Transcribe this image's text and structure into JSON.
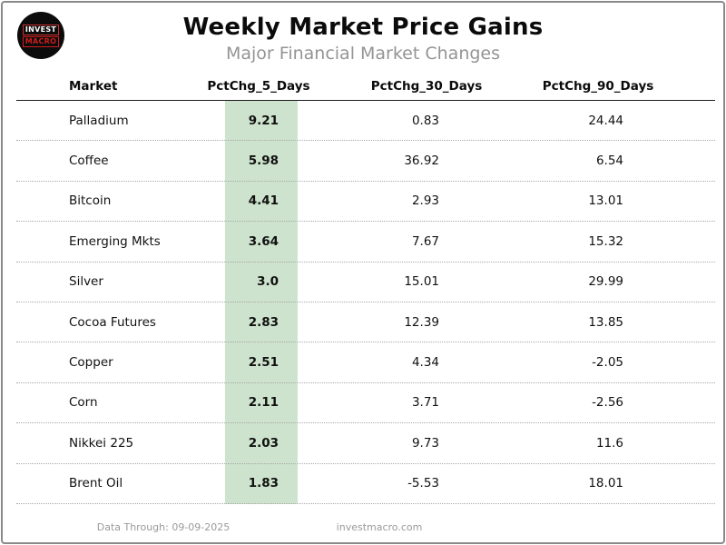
{
  "logo": {
    "line1": "INVEST",
    "line2": "MACRO"
  },
  "header": {
    "title": "Weekly Market Price Gains",
    "subtitle": "Major Financial Market Changes"
  },
  "table": {
    "columns": [
      "Market",
      "PctChg_5_Days",
      "PctChg_30_Days",
      "PctChg_90_Days"
    ],
    "rows": [
      {
        "market": "Palladium",
        "d5": "9.21",
        "d30": "0.83",
        "d90": "24.44"
      },
      {
        "market": "Coffee",
        "d5": "5.98",
        "d30": "36.92",
        "d90": "6.54"
      },
      {
        "market": "Bitcoin",
        "d5": "4.41",
        "d30": "2.93",
        "d90": "13.01"
      },
      {
        "market": "Emerging Mkts",
        "d5": "3.64",
        "d30": "7.67",
        "d90": "15.32"
      },
      {
        "market": "Silver",
        "d5": "3.0",
        "d30": "15.01",
        "d90": "29.99"
      },
      {
        "market": "Cocoa Futures",
        "d5": "2.83",
        "d30": "12.39",
        "d90": "13.85"
      },
      {
        "market": "Copper",
        "d5": "2.51",
        "d30": "4.34",
        "d90": "-2.05"
      },
      {
        "market": "Corn",
        "d5": "2.11",
        "d30": "3.71",
        "d90": "-2.56"
      },
      {
        "market": "Nikkei 225",
        "d5": "2.03",
        "d30": "9.73",
        "d90": "11.6"
      },
      {
        "market": "Brent Oil",
        "d5": "1.83",
        "d30": "-5.53",
        "d90": "18.01"
      }
    ]
  },
  "footer": {
    "data_through": "Data Through: 09-09-2025",
    "site": "investmacro.com"
  },
  "colors": {
    "highlight_green": "#cde3cd",
    "logo_red": "#cf1c1c",
    "subtitle_gray": "#949494"
  },
  "chart_data": {
    "type": "table",
    "title": "Weekly Market Price Gains",
    "subtitle": "Major Financial Market Changes",
    "columns": [
      "Market",
      "PctChg_5_Days",
      "PctChg_30_Days",
      "PctChg_90_Days"
    ],
    "rows": [
      [
        "Palladium",
        9.21,
        0.83,
        24.44
      ],
      [
        "Coffee",
        5.98,
        36.92,
        6.54
      ],
      [
        "Bitcoin",
        4.41,
        2.93,
        13.01
      ],
      [
        "Emerging Mkts",
        3.64,
        7.67,
        15.32
      ],
      [
        "Silver",
        3.0,
        15.01,
        29.99
      ],
      [
        "Cocoa Futures",
        2.83,
        12.39,
        13.85
      ],
      [
        "Copper",
        2.51,
        4.34,
        -2.05
      ],
      [
        "Corn",
        2.11,
        3.71,
        -2.56
      ],
      [
        "Nikkei 225",
        2.03,
        9.73,
        11.6
      ],
      [
        "Brent Oil",
        1.83,
        -5.53,
        18.01
      ]
    ],
    "highlighted_column": "PctChg_5_Days",
    "highlight_color": "#cde3cd",
    "sorted_by": "PctChg_5_Days descending",
    "data_through": "09-09-2025",
    "source": "investmacro.com"
  }
}
